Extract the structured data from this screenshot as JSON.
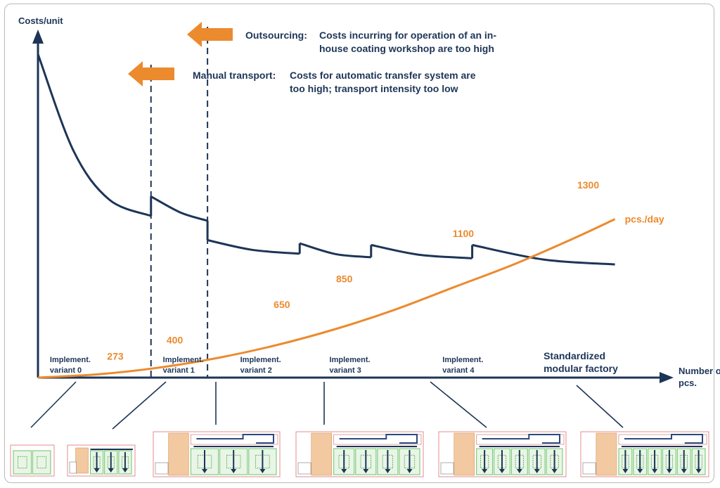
{
  "colors": {
    "navy": "#1d3557",
    "orange": "#ec8a2e",
    "panel": "#f2c9a0",
    "green": "#6ec36e"
  },
  "chart_data": {
    "type": "line",
    "title": "",
    "ylabel": "Costs/unit",
    "xlabel": "Number of pcs.",
    "xlim": [
      0,
      100
    ],
    "series": [
      {
        "name": "Costs/unit",
        "segments": [
          {
            "x": [
              0,
              6,
              12,
              19
            ],
            "y": [
              100,
              70,
              55,
              50
            ]
          },
          {
            "x": [
              19,
              24,
              28.5
            ],
            "y": [
              56,
              51,
              48.5
            ]
          },
          {
            "x": [
              28.5,
              36,
              44
            ],
            "y": [
              42.5,
              39.5,
              38.3
            ]
          },
          {
            "x": [
              44,
              50,
              56
            ],
            "y": [
              41.5,
              38.2,
              37.2
            ]
          },
          {
            "x": [
              56,
              64,
              73
            ],
            "y": [
              41,
              38,
              36.9
            ]
          },
          {
            "x": [
              73,
              85,
              97
            ],
            "y": [
              41,
              36.5,
              35
            ]
          }
        ]
      },
      {
        "name": "pcs./day",
        "x": [
          0,
          10,
          20,
          30,
          40,
          50,
          60,
          70,
          80,
          90,
          97
        ],
        "y": [
          0,
          1,
          3,
          6,
          10,
          15,
          21,
          28,
          35,
          43,
          49
        ]
      }
    ],
    "series_label": "pcs./day",
    "point_labels": [
      {
        "text": "273",
        "x": 13,
        "y": 5.5
      },
      {
        "text": "400",
        "x": 23,
        "y": 10.5
      },
      {
        "text": "650",
        "x": 41,
        "y": 21.5
      },
      {
        "text": "850",
        "x": 51.5,
        "y": 29.5
      },
      {
        "text": "1100",
        "x": 71.5,
        "y": 43.5
      },
      {
        "text": "1300",
        "x": 92.5,
        "y": 58.5
      }
    ],
    "thresholds": [
      {
        "name": "manual-transport",
        "x": 19,
        "label": "Manual transport:",
        "text_lines": [
          "Costs for automatic transfer system are",
          "too high; transport intensity too low"
        ]
      },
      {
        "name": "outsourcing",
        "x": 28.5,
        "label": "Outsourcing:",
        "text_lines": [
          "Costs incurring for operation of an in-",
          "house coating workshop are too high"
        ]
      }
    ],
    "stages": [
      {
        "lines": [
          "Implement.",
          "variant 0"
        ],
        "x": 2,
        "big": false
      },
      {
        "lines": [
          "Implement.",
          "variant 1"
        ],
        "x": 21,
        "big": false
      },
      {
        "lines": [
          "Implement.",
          "variant 2"
        ],
        "x": 34,
        "big": false
      },
      {
        "lines": [
          "Implement.",
          "variant 3"
        ],
        "x": 49,
        "big": false
      },
      {
        "lines": [
          "Implement.",
          "variant 4"
        ],
        "x": 68,
        "big": false
      },
      {
        "lines": [
          "Standardized",
          "modular factory"
        ],
        "x": 85,
        "big": true
      }
    ],
    "layouts": [
      {
        "name": "variant-0",
        "stations": 2
      },
      {
        "name": "variant-1",
        "stations": 3
      },
      {
        "name": "variant-2",
        "stations": 3
      },
      {
        "name": "variant-3",
        "stations": 4
      },
      {
        "name": "variant-4",
        "stations": 5
      },
      {
        "name": "standardized",
        "stations": 6
      }
    ]
  }
}
